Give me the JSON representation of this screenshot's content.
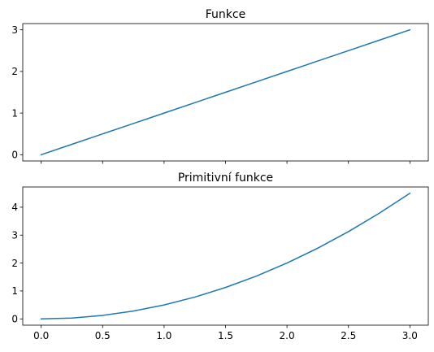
{
  "chart_data": [
    {
      "type": "line",
      "title": "Funkce",
      "xlabel": "",
      "ylabel": "",
      "xlim": [
        -0.15,
        3.15
      ],
      "ylim": [
        -0.15,
        3.15
      ],
      "x_ticks": [
        0.0,
        0.5,
        1.0,
        1.5,
        2.0,
        2.5,
        3.0
      ],
      "x_tick_labels_visible": false,
      "y_ticks": [
        0,
        1,
        2,
        3
      ],
      "y_tick_labels": [
        "0",
        "1",
        "2",
        "3"
      ],
      "grid": false,
      "color": "#1f77b4",
      "series": [
        {
          "x": [
            0.0,
            0.25,
            0.5,
            0.75,
            1.0,
            1.25,
            1.5,
            1.75,
            2.0,
            2.25,
            2.5,
            2.75,
            3.0
          ],
          "y": [
            0.0,
            0.25,
            0.5,
            0.75,
            1.0,
            1.25,
            1.5,
            1.75,
            2.0,
            2.25,
            2.5,
            2.75,
            3.0
          ]
        }
      ]
    },
    {
      "type": "line",
      "title": "Primitivní funkce",
      "xlabel": "",
      "ylabel": "",
      "xlim": [
        -0.15,
        3.15
      ],
      "ylim": [
        -0.225,
        4.725
      ],
      "x_ticks": [
        0.0,
        0.5,
        1.0,
        1.5,
        2.0,
        2.5,
        3.0
      ],
      "x_tick_labels": [
        "0.0",
        "0.5",
        "1.0",
        "1.5",
        "2.0",
        "2.5",
        "3.0"
      ],
      "x_tick_labels_visible": true,
      "y_ticks": [
        0,
        1,
        2,
        3,
        4
      ],
      "y_tick_labels": [
        "0",
        "1",
        "2",
        "3",
        "4"
      ],
      "grid": false,
      "color": "#1f77b4",
      "series": [
        {
          "x": [
            0.0,
            0.25,
            0.5,
            0.75,
            1.0,
            1.25,
            1.5,
            1.75,
            2.0,
            2.25,
            2.5,
            2.75,
            3.0
          ],
          "y": [
            0.0,
            0.03125,
            0.125,
            0.28125,
            0.5,
            0.78125,
            1.125,
            1.53125,
            2.0,
            2.53125,
            3.125,
            3.78125,
            4.5
          ]
        }
      ]
    }
  ]
}
